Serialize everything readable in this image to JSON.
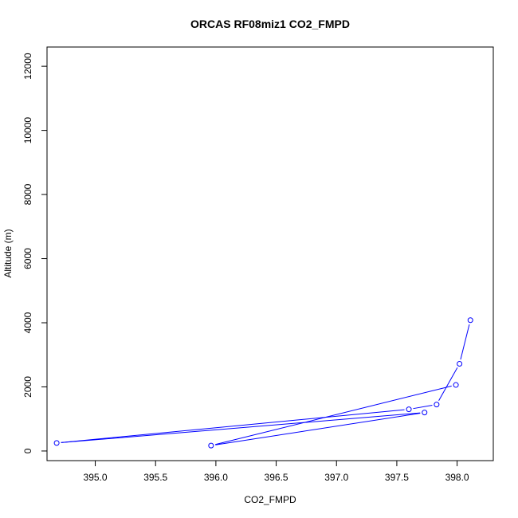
{
  "chart_data": {
    "type": "line",
    "title": "ORCAS RF08miz1 CO2_FMPD",
    "xlabel": "CO2_FMPD",
    "ylabel": "Altitude (m)",
    "xlim": [
      394.6,
      398.3
    ],
    "ylim": [
      -300,
      12600
    ],
    "x_ticks": [
      395.0,
      395.5,
      396.0,
      396.5,
      397.0,
      397.5,
      398.0
    ],
    "x_tick_labels": [
      "395.0",
      "395.5",
      "396.0",
      "396.5",
      "397.0",
      "397.5",
      "398.0"
    ],
    "y_ticks": [
      0,
      2000,
      4000,
      6000,
      8000,
      10000,
      12000
    ],
    "y_tick_labels": [
      "0",
      "2000",
      "4000",
      "6000",
      "8000",
      "10000",
      "12000"
    ],
    "grid": false,
    "color": "#0000ff",
    "series": [
      {
        "x": [
          398.11,
          398.02,
          397.83,
          397.6,
          394.68,
          397.73,
          395.96,
          397.99
        ],
        "y": [
          4080,
          2720,
          1450,
          1300,
          250,
          1200,
          170,
          2060
        ]
      }
    ]
  }
}
